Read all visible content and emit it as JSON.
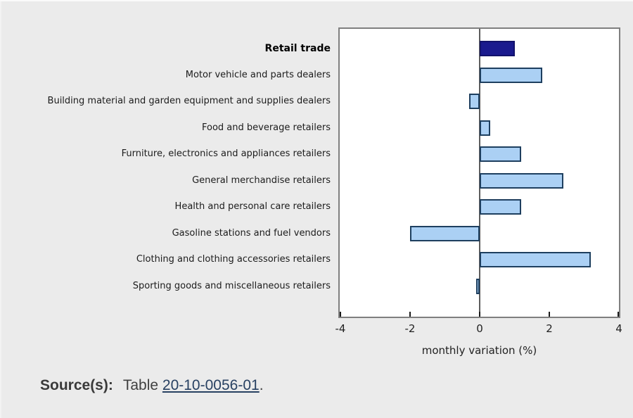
{
  "chart_data": {
    "type": "bar",
    "orientation": "horizontal",
    "categories": [
      "Retail trade",
      "Motor vehicle and parts dealers",
      "Building material and garden equipment and supplies dealers",
      "Food and beverage retailers",
      "Furniture, electronics and appliances retailers",
      "General merchandise retailers",
      "Health and personal care retailers",
      "Gasoline stations and fuel vendors",
      "Clothing and clothing accessories retailers",
      "Sporting goods and miscellaneous retailers"
    ],
    "values": [
      1.0,
      1.8,
      -0.3,
      0.3,
      1.2,
      2.4,
      1.2,
      -2.0,
      3.2,
      -0.1
    ],
    "title": "",
    "xlabel": "monthly variation (%)",
    "ylabel": "",
    "xlim": [
      -4,
      4
    ],
    "xticks": [
      "-4",
      "-2",
      "0",
      "2",
      "4"
    ],
    "grid": false,
    "legend": false,
    "highlight_category": "Retail trade",
    "colors": {
      "highlight_bar": "#1a1a8e",
      "bar_fill": "#abd0f4",
      "bar_border": "#1e3f5f",
      "plot_border": "#7f7f7f",
      "zero_line": "#5c5c5c",
      "background": "#ebebeb",
      "text": "#222222",
      "link": "#284162"
    }
  },
  "source": {
    "label": "Source(s):",
    "prefix": "Table ",
    "link_text": "20-10-0056-01",
    "suffix": "."
  }
}
